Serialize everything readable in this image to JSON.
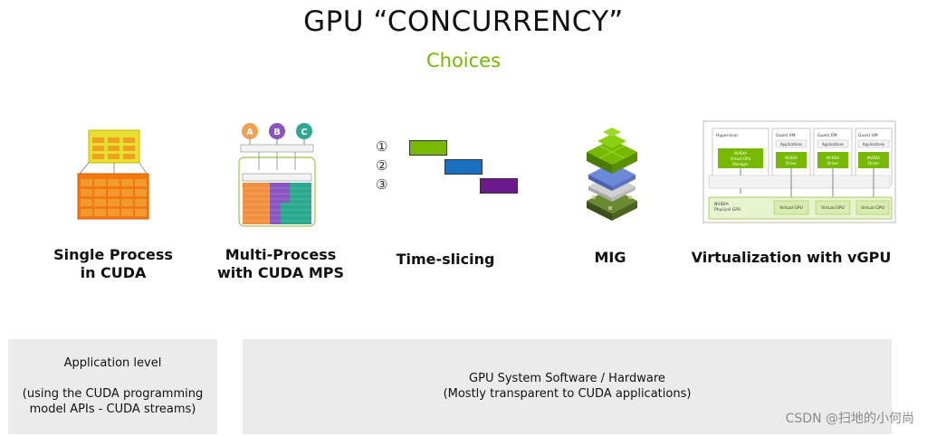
{
  "header": {
    "title": "GPU “CONCURRENCY”",
    "subtitle": "Choices",
    "accent_color": "#76b900"
  },
  "columns": [
    {
      "label_lines": [
        "Single Process",
        "in CUDA"
      ]
    },
    {
      "label_lines": [
        "Multi-Process",
        "with CUDA MPS"
      ]
    },
    {
      "label_lines": [
        "Time-slicing"
      ]
    },
    {
      "label_lines": [
        "MIG"
      ]
    },
    {
      "label_lines": [
        "Virtualization with vGPU"
      ]
    }
  ],
  "mps_diagram": {
    "clients": [
      "A",
      "B",
      "C"
    ],
    "client_colors": [
      "#f0a050",
      "#8a55c0",
      "#2aa890"
    ]
  },
  "timeslicing": {
    "markers": [
      "①",
      "②",
      "③"
    ],
    "bar_colors": [
      "#76b900",
      "#1a70c0",
      "#6a1a8a"
    ]
  },
  "vgpu_diagram": {
    "hypervisor": "Hypervisor",
    "manager": [
      "NVIDIA",
      "Virtual GPU",
      "Manager"
    ],
    "guest_vm": "Guest VM",
    "applications": "Applications",
    "driver": [
      "NVIDIA",
      "Driver"
    ],
    "physical_gpu": [
      "NVIDIA",
      "Physical GPU"
    ],
    "virtual_gpu": "Virtual GPU"
  },
  "boxes": {
    "application": {
      "lines": [
        "Application level",
        "",
        "(using the CUDA programming",
        "model APIs - CUDA streams)"
      ]
    },
    "system": {
      "lines": [
        "GPU System Software / Hardware",
        "(Mostly transparent to CUDA applications)"
      ]
    }
  },
  "watermark": "CSDN @扫地的小何尚"
}
